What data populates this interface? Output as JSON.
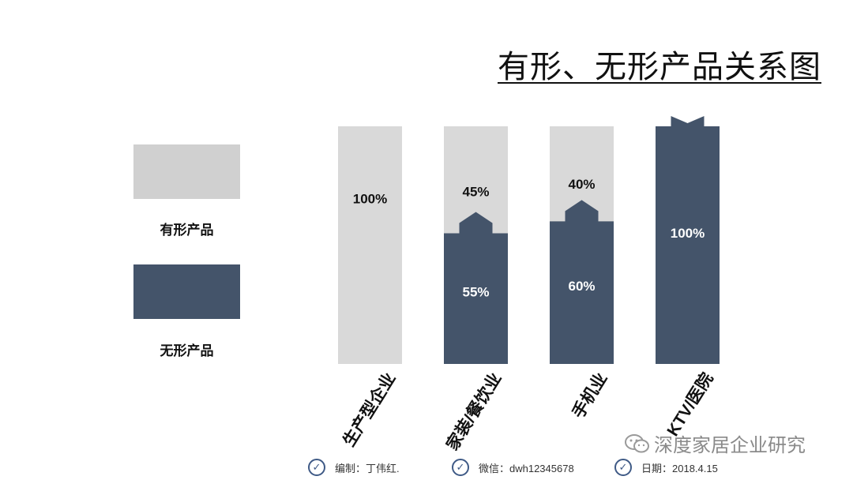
{
  "title": "有形、无形产品关系图",
  "legend": {
    "tangible": {
      "label": "有形产品",
      "color": "#d0d0d0"
    },
    "intangible": {
      "label": "无形产品",
      "color": "#44546a"
    }
  },
  "chart_data": {
    "type": "bar",
    "stacked": true,
    "categories": [
      "生产型企业",
      "家装/餐饮业",
      "手机业",
      "KTV/医院"
    ],
    "series": [
      {
        "name": "无形产品",
        "values": [
          0,
          55,
          60,
          100
        ],
        "labels": [
          "",
          "55%",
          "60%",
          "100%"
        ],
        "color": "#44546a"
      },
      {
        "name": "有形产品",
        "values": [
          100,
          45,
          40,
          0
        ],
        "labels": [
          "100%",
          "45%",
          "40%",
          ""
        ],
        "color": "#d9d9d9"
      }
    ],
    "ylim": [
      0,
      100
    ],
    "grid": false,
    "legend_position": "left"
  },
  "watermark": "深度家居企业研究",
  "footer": [
    {
      "label": "编制：丁伟红."
    },
    {
      "label": "微信：dwh12345678"
    },
    {
      "label": "日期：2018.4.15"
    }
  ]
}
